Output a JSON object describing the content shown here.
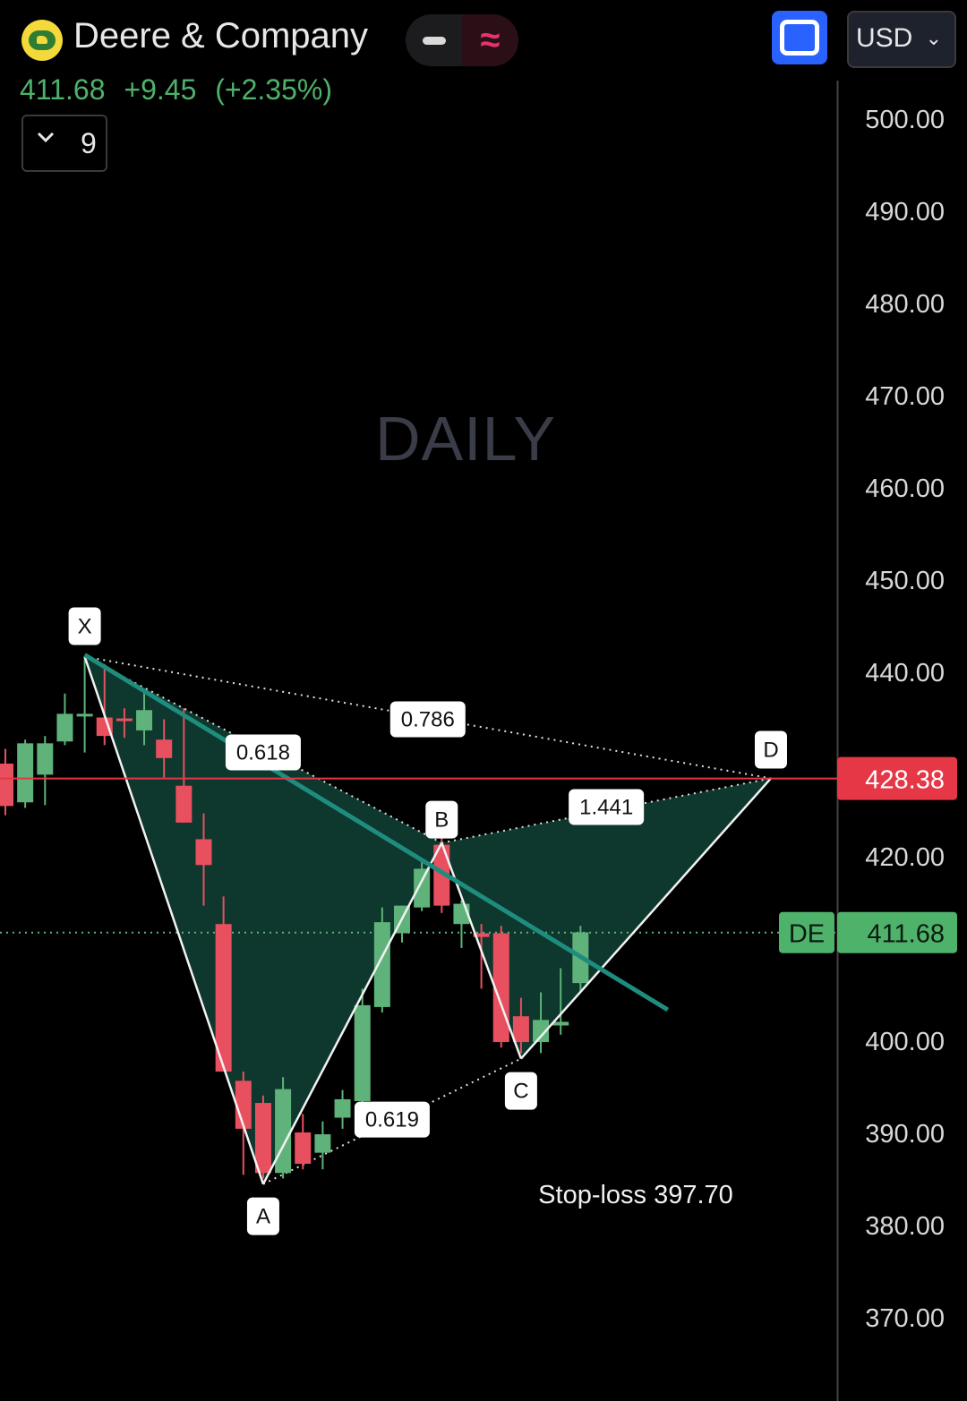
{
  "header": {
    "company": "Deere & Company",
    "price": "411.68",
    "change": "+9.45",
    "change_pct": "(+2.35%)",
    "currency": "USD",
    "indicator_count": "9",
    "logo_icon": "deere-logo",
    "toggle_icons": [
      "minus-icon",
      "wave-icon"
    ],
    "fullscreen_icon": "fullscreen-icon"
  },
  "watermark": "DAILY",
  "colors": {
    "up": "#5fb37a",
    "down": "#e8505f",
    "pattern_fill": "#0f3a2f",
    "trendline": "#1e8c7e",
    "stop_line": "#e53745",
    "price_tag_bg": "#4fb26b",
    "stop_tag_bg": "#e53745"
  },
  "chart_data": {
    "type": "candlestick",
    "timeframe": "DAILY",
    "symbol": "DE",
    "ylim": [
      365,
      505
    ],
    "yticks": [
      {
        "value": 500,
        "label": "500.00"
      },
      {
        "value": 490,
        "label": "490.00"
      },
      {
        "value": 480,
        "label": "480.00"
      },
      {
        "value": 470,
        "label": "470.00"
      },
      {
        "value": 460,
        "label": "460.00"
      },
      {
        "value": 450,
        "label": "450.00"
      },
      {
        "value": 440,
        "label": "440.00"
      },
      {
        "value": 420,
        "label": "420.00"
      },
      {
        "value": 400,
        "label": "400.00"
      },
      {
        "value": 390,
        "label": "390.00"
      },
      {
        "value": 380,
        "label": "380.00"
      },
      {
        "value": 370,
        "label": "370.00"
      }
    ],
    "candles": [
      {
        "o": 430.0,
        "h": 431.6,
        "l": 424.4,
        "c": 425.4
      },
      {
        "o": 425.8,
        "h": 432.6,
        "l": 425.2,
        "c": 432.2
      },
      {
        "o": 428.8,
        "h": 433.0,
        "l": 425.5,
        "c": 432.2
      },
      {
        "o": 432.4,
        "h": 437.6,
        "l": 432.0,
        "c": 435.4
      },
      {
        "o": 435.4,
        "h": 441.6,
        "l": 431.2,
        "c": 435.4
      },
      {
        "o": 435.0,
        "h": 440.8,
        "l": 432.0,
        "c": 433.0
      },
      {
        "o": 434.9,
        "h": 436.0,
        "l": 432.8,
        "c": 434.7
      },
      {
        "o": 433.6,
        "h": 437.8,
        "l": 432.0,
        "c": 435.8
      },
      {
        "o": 432.6,
        "h": 434.8,
        "l": 428.5,
        "c": 430.6
      },
      {
        "o": 427.6,
        "h": 436.0,
        "l": 423.6,
        "c": 423.6
      },
      {
        "o": 421.8,
        "h": 424.6,
        "l": 414.6,
        "c": 419.0
      },
      {
        "o": 412.6,
        "h": 415.6,
        "l": 396.6,
        "c": 396.6
      },
      {
        "o": 395.6,
        "h": 396.6,
        "l": 385.4,
        "c": 390.4
      },
      {
        "o": 393.2,
        "h": 394.0,
        "l": 385.0,
        "c": 385.6
      },
      {
        "o": 385.6,
        "h": 396.0,
        "l": 385.0,
        "c": 394.7
      },
      {
        "o": 390.0,
        "h": 392.0,
        "l": 386.0,
        "c": 386.6
      },
      {
        "o": 387.8,
        "h": 391.2,
        "l": 386.0,
        "c": 389.8
      },
      {
        "o": 391.6,
        "h": 394.6,
        "l": 390.4,
        "c": 393.6
      },
      {
        "o": 393.4,
        "h": 405.6,
        "l": 392.6,
        "c": 403.8
      },
      {
        "o": 403.6,
        "h": 414.4,
        "l": 403.0,
        "c": 412.8
      },
      {
        "o": 411.6,
        "h": 414.6,
        "l": 410.6,
        "c": 414.6
      },
      {
        "o": 414.4,
        "h": 419.4,
        "l": 414.0,
        "c": 418.6
      },
      {
        "o": 421.2,
        "h": 422.8,
        "l": 413.8,
        "c": 414.6
      },
      {
        "o": 412.6,
        "h": 415.2,
        "l": 410.0,
        "c": 414.8
      },
      {
        "o": 411.6,
        "h": 412.6,
        "l": 405.6,
        "c": 411.2
      },
      {
        "o": 411.6,
        "h": 412.4,
        "l": 399.2,
        "c": 399.8
      },
      {
        "o": 402.6,
        "h": 404.6,
        "l": 398.6,
        "c": 399.8
      },
      {
        "o": 399.8,
        "h": 405.2,
        "l": 398.6,
        "c": 402.2
      },
      {
        "o": 401.6,
        "h": 407.8,
        "l": 400.6,
        "c": 402.0
      },
      {
        "o": 406.2,
        "h": 412.4,
        "l": 405.2,
        "c": 411.7
      }
    ],
    "pattern": {
      "points": [
        {
          "name": "X",
          "bar": 4,
          "price": 441.6
        },
        {
          "name": "A",
          "bar": 13,
          "price": 384.4
        },
        {
          "name": "B",
          "bar": 22,
          "price": 421.4
        },
        {
          "name": "C",
          "bar": 26,
          "price": 398.0
        },
        {
          "name": "D",
          "bar": 38.6,
          "price": 428.4
        }
      ],
      "ratios": [
        {
          "label": "0.786",
          "from": "X",
          "to": "D"
        },
        {
          "label": "0.618",
          "from": "X",
          "to": "B"
        },
        {
          "label": "1.441",
          "from": "B",
          "to": "D"
        },
        {
          "label": "0.619",
          "from": "A",
          "to": "C"
        }
      ]
    },
    "trendline": {
      "from": {
        "bar": 4,
        "price": 441.8
      },
      "to": {
        "bar": 33.4,
        "price": 403.3
      }
    },
    "horizontal_line": {
      "price": 428.38,
      "label": "428.38"
    },
    "last_price": {
      "price": 411.68,
      "label": "411.68",
      "symbol": "DE"
    },
    "annotation": "Stop-loss 397.70"
  }
}
